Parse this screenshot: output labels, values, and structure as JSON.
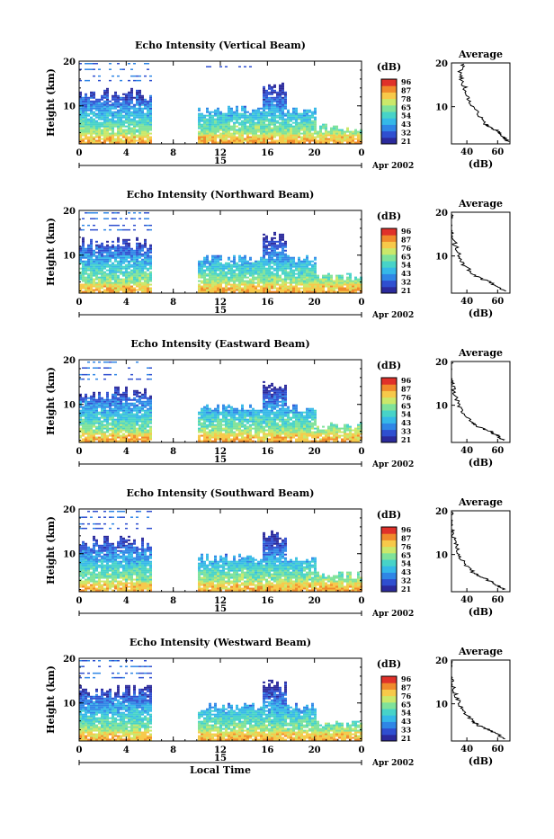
{
  "beam_colors": [
    "#2b2a9c",
    "#2f4fd0",
    "#2f86e6",
    "#35b8e8",
    "#47d3c8",
    "#7fe29a",
    "#cbe86a",
    "#f7c94a",
    "#f08a2c",
    "#e0312a"
  ],
  "colorbar": {
    "unit": "(dB)",
    "ticks": [
      "96",
      "87",
      "78",
      "65",
      "54",
      "43",
      "32",
      "21"
    ]
  },
  "panels": [
    {
      "title": "Echo Intensity (Vertical Beam)",
      "ylabel": "Height (km)",
      "yticks": [
        "20",
        "10"
      ],
      "xticks": [
        "0",
        "4",
        "8",
        "12",
        "16",
        "20",
        "0"
      ],
      "date_day": "15",
      "date_tail": "Apr 2002",
      "colorbar_ticks": [
        "96",
        "87",
        "78",
        "65",
        "54",
        "43",
        "32",
        "21"
      ],
      "avg_title": "Average",
      "avg_xlabel": "(dB)",
      "avg_xticks": [
        "40",
        "60"
      ],
      "avg_yticks": [
        "20",
        "10"
      ]
    },
    {
      "title": "Echo Intensity (Northward Beam)",
      "ylabel": "Height (km)",
      "yticks": [
        "20",
        "10"
      ],
      "xticks": [
        "0",
        "4",
        "8",
        "12",
        "16",
        "20",
        "0"
      ],
      "date_day": "15",
      "date_tail": "Apr 2002",
      "colorbar_ticks": [
        "96",
        "87",
        "76",
        "65",
        "54",
        "43",
        "32",
        "21"
      ],
      "avg_title": "Average",
      "avg_xlabel": "(dB)",
      "avg_xticks": [
        "40",
        "60"
      ],
      "avg_yticks": [
        "20",
        "10"
      ]
    },
    {
      "title": "Echo Intensity (Eastward Beam)",
      "ylabel": "Height (km)",
      "yticks": [
        "20",
        "10"
      ],
      "xticks": [
        "0",
        "4",
        "8",
        "12",
        "16",
        "20",
        "0"
      ],
      "date_day": "15",
      "date_tail": "Apr 2002",
      "colorbar_ticks": [
        "96",
        "87",
        "76",
        "65",
        "54",
        "43",
        "33",
        "21"
      ],
      "avg_title": "Average",
      "avg_xlabel": "(dB)",
      "avg_xticks": [
        "40",
        "60"
      ],
      "avg_yticks": [
        "20",
        "10"
      ]
    },
    {
      "title": "Echo Intensity (Southward Beam)",
      "ylabel": "Height (km)",
      "yticks": [
        "20",
        "10"
      ],
      "xticks": [
        "0",
        "4",
        "8",
        "12",
        "16",
        "20",
        "0"
      ],
      "date_day": "15",
      "date_tail": "Apr 2002",
      "colorbar_ticks": [
        "96",
        "87",
        "76",
        "65",
        "54",
        "43",
        "32",
        "21"
      ],
      "avg_title": "Average",
      "avg_xlabel": "(dB)",
      "avg_xticks": [
        "40",
        "60"
      ],
      "avg_yticks": [
        "20",
        "10"
      ]
    },
    {
      "title": "Echo Intensity (Westward Beam)",
      "ylabel": "Height (km)",
      "yticks": [
        "20",
        "10"
      ],
      "xticks": [
        "0",
        "4",
        "8",
        "12",
        "16",
        "20",
        "0"
      ],
      "date_day": "15",
      "date_tail": "Apr 2002",
      "colorbar_ticks": [
        "96",
        "87",
        "76",
        "65",
        "54",
        "43",
        "33",
        "21"
      ],
      "avg_title": "Average",
      "avg_xlabel": "(dB)",
      "avg_xticks": [
        "40",
        "60"
      ],
      "avg_yticks": [
        "20",
        "10"
      ]
    }
  ],
  "xlabel_bottom": "Local Time",
  "chart_data": [
    {
      "type": "heatmap",
      "title": "Echo Intensity (Vertical Beam)",
      "xlabel": "Local Time",
      "ylabel": "Height (km)",
      "xlim": [
        0,
        24
      ],
      "ylim": [
        1.5,
        20
      ],
      "color_unit": "dB",
      "color_range": [
        21,
        96
      ],
      "data_gaps_hours": [
        [
          6,
          10
        ]
      ],
      "profile": {
        "title": "Average",
        "xlabel": "(dB)",
        "height_km": [
          2,
          3,
          4,
          5,
          6,
          8,
          10,
          12,
          14,
          16,
          18,
          20
        ],
        "db": [
          67,
          64,
          62,
          57,
          52,
          48,
          44,
          41,
          39,
          37,
          35,
          38
        ]
      }
    },
    {
      "type": "heatmap",
      "title": "Echo Intensity (Northward Beam)",
      "xlabel": "Local Time",
      "ylabel": "Height (km)",
      "xlim": [
        0,
        24
      ],
      "ylim": [
        1.5,
        20
      ],
      "color_unit": "dB",
      "color_range": [
        21,
        96
      ],
      "data_gaps_hours": [
        [
          6,
          10
        ]
      ],
      "profile": {
        "title": "Average",
        "xlabel": "(dB)",
        "height_km": [
          2,
          3,
          4,
          5,
          6,
          8,
          10,
          12,
          14,
          16,
          18,
          20
        ],
        "db": [
          64,
          60,
          55,
          48,
          44,
          38,
          35,
          33,
          31,
          30,
          29,
          30
        ]
      }
    },
    {
      "type": "heatmap",
      "title": "Echo Intensity (Eastward Beam)",
      "xlabel": "Local Time",
      "ylabel": "Height (km)",
      "xlim": [
        0,
        24
      ],
      "ylim": [
        1.5,
        20
      ],
      "color_unit": "dB",
      "color_range": [
        21,
        96
      ],
      "data_gaps_hours": [
        [
          6,
          10
        ]
      ],
      "profile": {
        "title": "Average",
        "xlabel": "(dB)",
        "height_km": [
          2,
          3,
          4,
          5,
          6,
          8,
          10,
          12,
          14,
          16,
          18,
          20
        ],
        "db": [
          64,
          60,
          55,
          48,
          44,
          38,
          35,
          33,
          31,
          30,
          29,
          30
        ]
      }
    },
    {
      "type": "heatmap",
      "title": "Echo Intensity (Southward Beam)",
      "xlabel": "Local Time",
      "ylabel": "Height (km)",
      "xlim": [
        0,
        24
      ],
      "ylim": [
        1.5,
        20
      ],
      "color_unit": "dB",
      "color_range": [
        21,
        96
      ],
      "data_gaps_hours": [
        [
          6,
          10
        ]
      ],
      "profile": {
        "title": "Average",
        "xlabel": "(dB)",
        "height_km": [
          2,
          3,
          4,
          5,
          6,
          8,
          10,
          12,
          14,
          16,
          18,
          20
        ],
        "db": [
          64,
          60,
          55,
          48,
          44,
          38,
          35,
          33,
          31,
          30,
          29,
          30
        ]
      }
    },
    {
      "type": "heatmap",
      "title": "Echo Intensity (Westward Beam)",
      "xlabel": "Local Time",
      "ylabel": "Height (km)",
      "xlim": [
        0,
        24
      ],
      "ylim": [
        1.5,
        20
      ],
      "color_unit": "dB",
      "color_range": [
        21,
        96
      ],
      "data_gaps_hours": [
        [
          6,
          10
        ]
      ],
      "profile": {
        "title": "Average",
        "xlabel": "(dB)",
        "height_km": [
          2,
          3,
          4,
          5,
          6,
          8,
          10,
          12,
          14,
          16,
          18,
          20
        ],
        "db": [
          64,
          60,
          55,
          48,
          44,
          38,
          35,
          33,
          31,
          30,
          29,
          30
        ]
      }
    }
  ]
}
